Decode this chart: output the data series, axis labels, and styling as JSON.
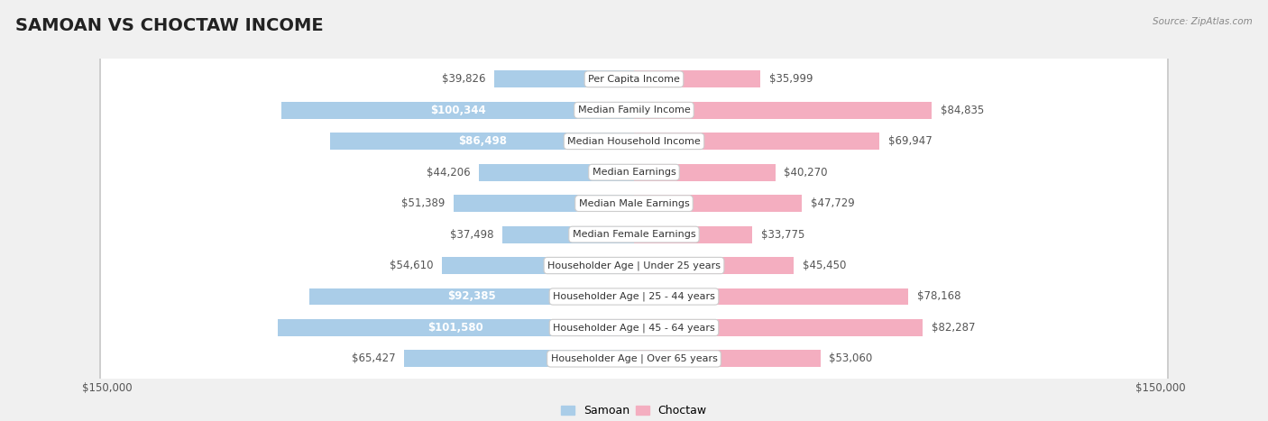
{
  "title": "SAMOAN VS CHOCTAW INCOME",
  "source": "Source: ZipAtlas.com",
  "categories": [
    "Per Capita Income",
    "Median Family Income",
    "Median Household Income",
    "Median Earnings",
    "Median Male Earnings",
    "Median Female Earnings",
    "Householder Age | Under 25 years",
    "Householder Age | 25 - 44 years",
    "Householder Age | 45 - 64 years",
    "Householder Age | Over 65 years"
  ],
  "samoan_values": [
    39826,
    100344,
    86498,
    44206,
    51389,
    37498,
    54610,
    92385,
    101580,
    65427
  ],
  "choctaw_values": [
    35999,
    84835,
    69947,
    40270,
    47729,
    33775,
    45450,
    78168,
    82287,
    53060
  ],
  "samoan_color_dark": "#4a90c4",
  "samoan_color_light": "#aacde8",
  "choctaw_color_dark": "#e8587a",
  "choctaw_color_light": "#f4aec0",
  "label_color_dark": "#555555",
  "label_color_white": "#ffffff",
  "max_value": 150000,
  "bar_height": 0.55,
  "background_color": "#f0f0f0",
  "row_bg_color": "#ffffff",
  "row_alt_color": "#ebebeb",
  "title_fontsize": 14,
  "label_fontsize": 8.5,
  "category_fontsize": 8,
  "legend_fontsize": 9,
  "white_threshold_samoan": 75000,
  "white_threshold_choctaw": 75000
}
